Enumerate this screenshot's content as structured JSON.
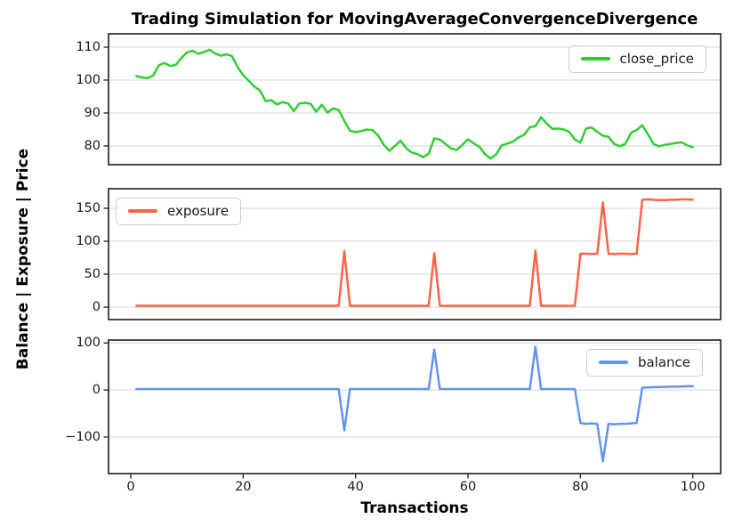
{
  "title": "Trading Simulation for MovingAverageConvergenceDivergence",
  "xlabel": "Transactions",
  "ylabel": "Balance | Exposure | Price",
  "colors": {
    "close_price": "#32CD32",
    "exposure": "#FF6347",
    "balance": "#6495ED",
    "grid": "#d9d9d9",
    "spine": "#2b2b2b",
    "text": "#1a1a1a"
  },
  "chart_data": {
    "type": "line",
    "x_start": 1,
    "xlim": [
      -3.95,
      104.95
    ],
    "xticks": [
      0,
      20,
      40,
      60,
      80,
      100
    ],
    "grid": "horizontal-only",
    "panels": [
      {
        "name": "price",
        "legend_label": "close_price",
        "color_key": "close_price",
        "legend_position": "top-right",
        "yticks": [
          80,
          90,
          100,
          110
        ],
        "ylim": [
          74.3,
          114.05
        ],
        "values": [
          101.2,
          100.8,
          100.6,
          101.4,
          104.5,
          105.2,
          104.3,
          104.6,
          106.7,
          108.4,
          108.9,
          108.0,
          108.5,
          109.2,
          108.1,
          107.4,
          107.8,
          107.3,
          104.0,
          101.5,
          99.8,
          98.0,
          96.8,
          93.6,
          93.9,
          92.6,
          93.3,
          92.9,
          90.6,
          92.9,
          93.1,
          92.8,
          90.4,
          92.5,
          90.1,
          91.4,
          90.9,
          87.6,
          84.6,
          84.2,
          84.5,
          85.0,
          84.8,
          83.2,
          80.4,
          78.5,
          80.0,
          81.6,
          79.3,
          78.0,
          77.5,
          76.6,
          77.6,
          82.3,
          81.9,
          80.6,
          79.2,
          78.8,
          80.3,
          82.0,
          80.8,
          79.8,
          77.5,
          76.2,
          77.4,
          80.2,
          80.7,
          81.3,
          82.6,
          83.4,
          85.7,
          86.0,
          88.7,
          86.8,
          85.2,
          85.3,
          85.0,
          84.3,
          82.0,
          81.0,
          85.3,
          85.6,
          84.3,
          83.1,
          82.8,
          80.6,
          79.9,
          80.6,
          84.0,
          84.8,
          86.3,
          83.6,
          80.6,
          79.9,
          80.3,
          80.6,
          80.9,
          81.1,
          80.2,
          79.6
        ]
      },
      {
        "name": "exposure",
        "legend_label": "exposure",
        "color_key": "exposure",
        "legend_position": "top-left",
        "yticks": [
          0,
          50,
          100,
          150
        ],
        "ylim": [
          -18.9,
          179.7
        ],
        "values": [
          2,
          2,
          2,
          2,
          2,
          2,
          2,
          2,
          2,
          2,
          2,
          2,
          2,
          2,
          2,
          2,
          2,
          2,
          2,
          2,
          2,
          2,
          2,
          2,
          2,
          2,
          2,
          2,
          2,
          2,
          2,
          2,
          2,
          2,
          2,
          2,
          2,
          85,
          2,
          2,
          2,
          2,
          2,
          2,
          2,
          2,
          2,
          2,
          2,
          2,
          2,
          2,
          2,
          82,
          2,
          2,
          2,
          2,
          2,
          2,
          2,
          2,
          2,
          2,
          2,
          2,
          2,
          2,
          2,
          2,
          2,
          86,
          2,
          2,
          2,
          2,
          2,
          2,
          2,
          81,
          81,
          80.5,
          81,
          159,
          81,
          80.5,
          81,
          81,
          80.5,
          81,
          163,
          163.5,
          163,
          162.5,
          162.5,
          163,
          163,
          163.5,
          163.5,
          163
        ]
      },
      {
        "name": "balance",
        "legend_label": "balance",
        "color_key": "balance",
        "legend_position": "top-right",
        "yticks": [
          -100,
          0,
          100
        ],
        "ylim": [
          -177.8,
          106.2
        ],
        "values": [
          2,
          2,
          2,
          2,
          2,
          2,
          2,
          2,
          2,
          2,
          2,
          2,
          2,
          2,
          2,
          2,
          2,
          2,
          2,
          2,
          2,
          2,
          2,
          2,
          2,
          2,
          2,
          2,
          2,
          2,
          2,
          2,
          2,
          2,
          2,
          2,
          2,
          -86,
          2,
          2,
          2,
          2,
          2,
          2,
          2,
          2,
          2,
          2,
          2,
          2,
          2,
          2,
          2,
          86,
          2,
          2,
          2,
          2,
          2,
          2,
          2,
          2,
          2,
          2,
          2,
          2,
          2,
          2,
          2,
          2,
          2,
          92,
          2,
          2,
          2,
          2,
          2,
          2,
          2,
          -70,
          -72,
          -71,
          -72,
          -152,
          -72,
          -73,
          -72,
          -72,
          -71,
          -70,
          5,
          5.5,
          6,
          6,
          6.5,
          7,
          7,
          7.5,
          8,
          8
        ]
      }
    ]
  }
}
